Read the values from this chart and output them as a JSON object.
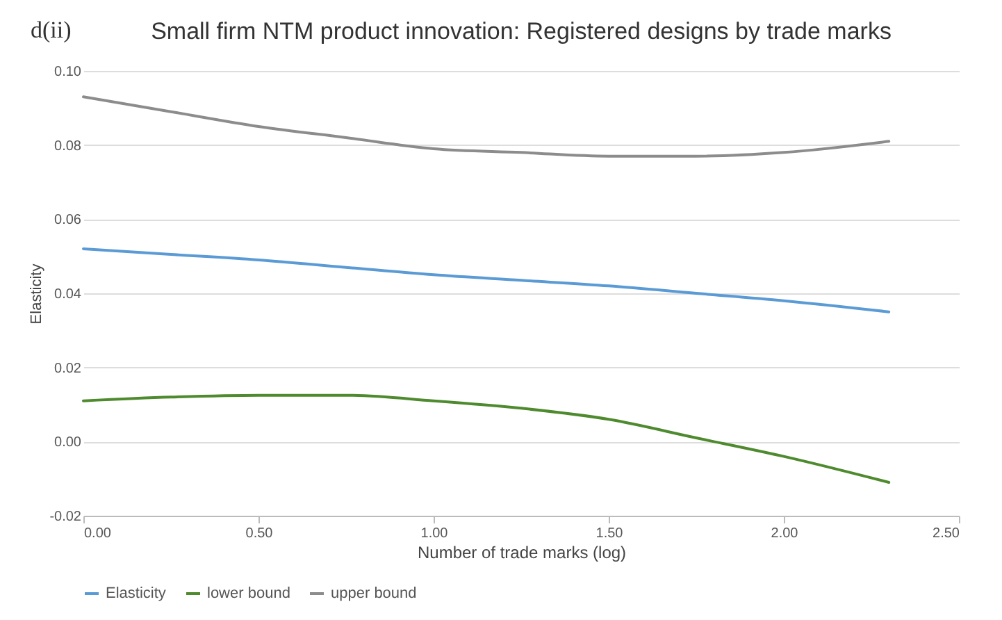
{
  "chart_data": {
    "type": "line",
    "title": "Small firm NTM product innovation: Registered designs by trade marks",
    "annotations": [
      "d(ii)"
    ],
    "xlabel": "Number of trade marks (log)",
    "ylabel": "Elasticity",
    "xlim": [
      0,
      2.5
    ],
    "xticks": [
      {
        "value": 0,
        "label": "0.00"
      },
      {
        "value": 0.5,
        "label": "0.50"
      },
      {
        "value": 1,
        "label": "1.00"
      },
      {
        "value": 1.5,
        "label": "1.50"
      },
      {
        "value": 2,
        "label": "2.00"
      },
      {
        "value": 2.5,
        "label": "2.50"
      }
    ],
    "ylim": [
      -0.02,
      0.1
    ],
    "yticks": [
      {
        "value": -0.02,
        "label": "-0.02"
      },
      {
        "value": 0,
        "label": "0.00"
      },
      {
        "value": 0.02,
        "label": "0.02"
      },
      {
        "value": 0.04,
        "label": "0.04"
      },
      {
        "value": 0.06,
        "label": "0.06"
      },
      {
        "value": 0.08,
        "label": "0.08"
      },
      {
        "value": 0.1,
        "label": "0.10"
      }
    ],
    "x": [
      0,
      0.25,
      0.5,
      0.75,
      1.0,
      1.25,
      1.5,
      1.75,
      2.0,
      2.3
    ],
    "series": [
      {
        "name": "Elasticity",
        "color": "#5b9bd5",
        "values": [
          0.052,
          0.0505,
          0.049,
          0.047,
          0.045,
          0.0435,
          0.042,
          0.04,
          0.038,
          0.035
        ]
      },
      {
        "name": "lower bound",
        "color": "#4e8a2e",
        "values": [
          0.011,
          0.012,
          0.0125,
          0.0125,
          0.011,
          0.009,
          0.006,
          0.001,
          -0.004,
          -0.011
        ]
      },
      {
        "name": "upper bound",
        "color": "#8c8c8c",
        "values": [
          0.093,
          0.089,
          0.085,
          0.082,
          0.079,
          0.078,
          0.077,
          0.077,
          0.078,
          0.081
        ]
      }
    ],
    "grid": "y",
    "legend": "bottom",
    "line_style": "solid"
  }
}
